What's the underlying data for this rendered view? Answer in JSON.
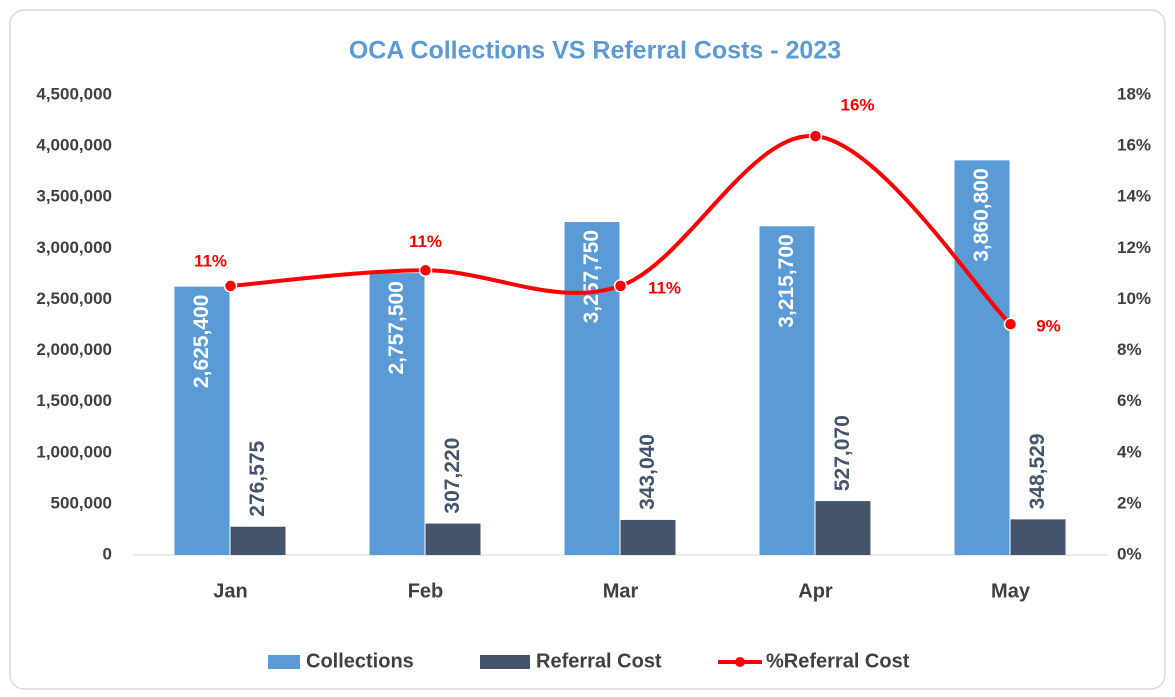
{
  "chart_data": {
    "type": "bar_line",
    "title": "OCA Collections VS Referral Costs - 2023",
    "categories": [
      "Jan",
      "Feb",
      "Mar",
      "Apr",
      "May"
    ],
    "series": [
      {
        "name": "Collections",
        "color": "#5b9bd5",
        "values": [
          2625400,
          2757500,
          3257750,
          3215700,
          3860800
        ],
        "value_labels": [
          "2,625,400",
          "2,757,500",
          "3,257,750",
          "3,215,700",
          "3,860,800"
        ]
      },
      {
        "name": "Referral Cost",
        "color": "#44546a",
        "values": [
          276575,
          307220,
          343040,
          527070,
          348529
        ],
        "value_labels": [
          "276,575",
          "307,220",
          "343,040",
          "527,070",
          "348,529"
        ]
      },
      {
        "name": "%Referral Cost",
        "color": "#ff0000",
        "axis": "y2",
        "values": [
          10.53,
          11.14,
          10.53,
          16.39,
          9.03
        ],
        "value_labels": [
          "11%",
          "11%",
          "11%",
          "16%",
          "9%"
        ]
      }
    ],
    "ylim": [
      0,
      4500000
    ],
    "yticks": [
      0,
      {
        "value": 500000,
        "label": "500,000"
      },
      {
        "value": 1000000,
        "label": "1,000,000"
      },
      {
        "value": 1500000,
        "label": "1,500,000"
      },
      {
        "value": 2000000,
        "label": "2,000,000"
      },
      {
        "value": 2500000,
        "label": "2,500,000"
      },
      {
        "value": 3000000,
        "label": "3,000,000"
      },
      {
        "value": 3500000,
        "label": "3,500,000"
      },
      {
        "value": 4000000,
        "label": "4,000,000"
      },
      {
        "value": 4500000,
        "label": "4,500,000"
      }
    ],
    "y2lim": [
      0,
      18
    ],
    "y2ticks": [
      {
        "value": 0,
        "label": "0%"
      },
      {
        "value": 2,
        "label": "2%"
      },
      {
        "value": 4,
        "label": "4%"
      },
      {
        "value": 6,
        "label": "6%"
      },
      {
        "value": 8,
        "label": "8%"
      },
      {
        "value": 10,
        "label": "10%"
      },
      {
        "value": 12,
        "label": "12%"
      },
      {
        "value": 14,
        "label": "14%"
      },
      {
        "value": 16,
        "label": "16%"
      },
      {
        "value": 18,
        "label": "18%"
      }
    ],
    "legend": "bottom"
  }
}
